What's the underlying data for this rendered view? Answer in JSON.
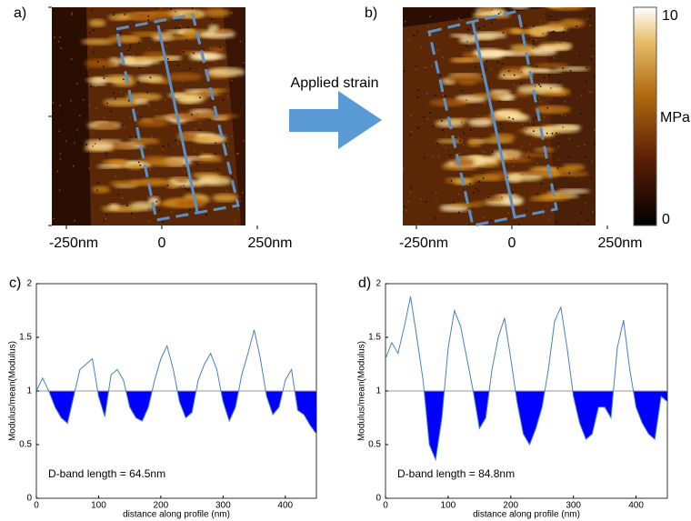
{
  "images": [
    {
      "panel": "a)",
      "xticks": [
        {
          "value": -250,
          "label": "-250nm"
        },
        0,
        {
          "value": 250,
          "label": "250nm"
        }
      ]
    },
    {
      "panel": "b)",
      "xticks": [
        {
          "value": -250,
          "label": "-250nm"
        },
        0,
        {
          "value": 250,
          "label": "250nm"
        }
      ]
    }
  ],
  "arrow_label": "Applied strain",
  "colorbar": {
    "label": "MPa",
    "range": [
      0,
      10
    ],
    "ticks": [
      0,
      10
    ]
  },
  "chart_data": [
    {
      "type": "line",
      "panel": "c)",
      "ylabel": "Modulus/mean(Modulus)",
      "xlabel": "distance along profile (nm)",
      "annotation": "D-band length = 64.5nm",
      "color": "#4a7fc0",
      "fill_below_color": "#0000ff",
      "reference_y": 1,
      "x": [
        0,
        10,
        20,
        30,
        40,
        50,
        60,
        70,
        80,
        90,
        100,
        110,
        120,
        130,
        140,
        150,
        160,
        170,
        180,
        190,
        200,
        210,
        220,
        230,
        240,
        250,
        260,
        270,
        280,
        290,
        300,
        310,
        320,
        330,
        340,
        350,
        360,
        370,
        380,
        390,
        400,
        410,
        420,
        430,
        440,
        450
      ],
      "values": [
        1.0,
        1.12,
        1.0,
        0.85,
        0.75,
        0.7,
        0.95,
        1.2,
        1.25,
        1.3,
        0.95,
        0.76,
        1.15,
        1.2,
        1.1,
        0.85,
        0.75,
        0.72,
        0.85,
        1.1,
        1.3,
        1.42,
        1.2,
        0.9,
        0.75,
        0.8,
        1.1,
        1.25,
        1.35,
        1.2,
        0.9,
        0.72,
        0.85,
        1.15,
        1.35,
        1.57,
        1.3,
        0.95,
        0.78,
        0.85,
        1.1,
        1.2,
        0.82,
        0.78,
        0.68,
        0.6
      ],
      "xlim": [
        0,
        450
      ],
      "ylim": [
        0,
        2
      ],
      "xticks": [
        0,
        100,
        200,
        300,
        400
      ],
      "yticks": [
        0,
        0.5,
        1,
        1.5,
        2
      ]
    },
    {
      "type": "line",
      "panel": "d)",
      "ylabel": "Modulus/mean(Modulus)",
      "xlabel": "distance along profile (nm)",
      "annotation": "D-band length = 84.8nm",
      "color": "#4a7fc0",
      "fill_below_color": "#0000ff",
      "reference_y": 1,
      "x": [
        0,
        10,
        20,
        30,
        40,
        50,
        60,
        70,
        80,
        90,
        100,
        110,
        120,
        130,
        140,
        150,
        160,
        170,
        180,
        190,
        200,
        210,
        220,
        230,
        240,
        250,
        260,
        270,
        280,
        290,
        300,
        310,
        320,
        330,
        340,
        350,
        360,
        370,
        380,
        390,
        400,
        410,
        420,
        430,
        440,
        450
      ],
      "values": [
        1.3,
        1.45,
        1.35,
        1.6,
        1.88,
        1.5,
        1.1,
        0.5,
        0.36,
        0.75,
        1.4,
        1.75,
        1.6,
        1.3,
        1.0,
        0.65,
        0.75,
        1.2,
        1.5,
        1.68,
        1.3,
        0.9,
        0.6,
        0.5,
        0.65,
        0.85,
        1.2,
        1.65,
        1.78,
        1.4,
        0.95,
        0.7,
        0.55,
        0.6,
        0.85,
        0.85,
        0.75,
        1.4,
        1.66,
        1.2,
        0.85,
        0.7,
        0.6,
        0.55,
        0.95,
        0.9
      ],
      "xlim": [
        0,
        450
      ],
      "ylim": [
        0,
        2
      ],
      "xticks": [
        0,
        100,
        200,
        300,
        400
      ],
      "yticks": [
        0,
        0.5,
        1,
        1.5,
        2
      ]
    }
  ]
}
